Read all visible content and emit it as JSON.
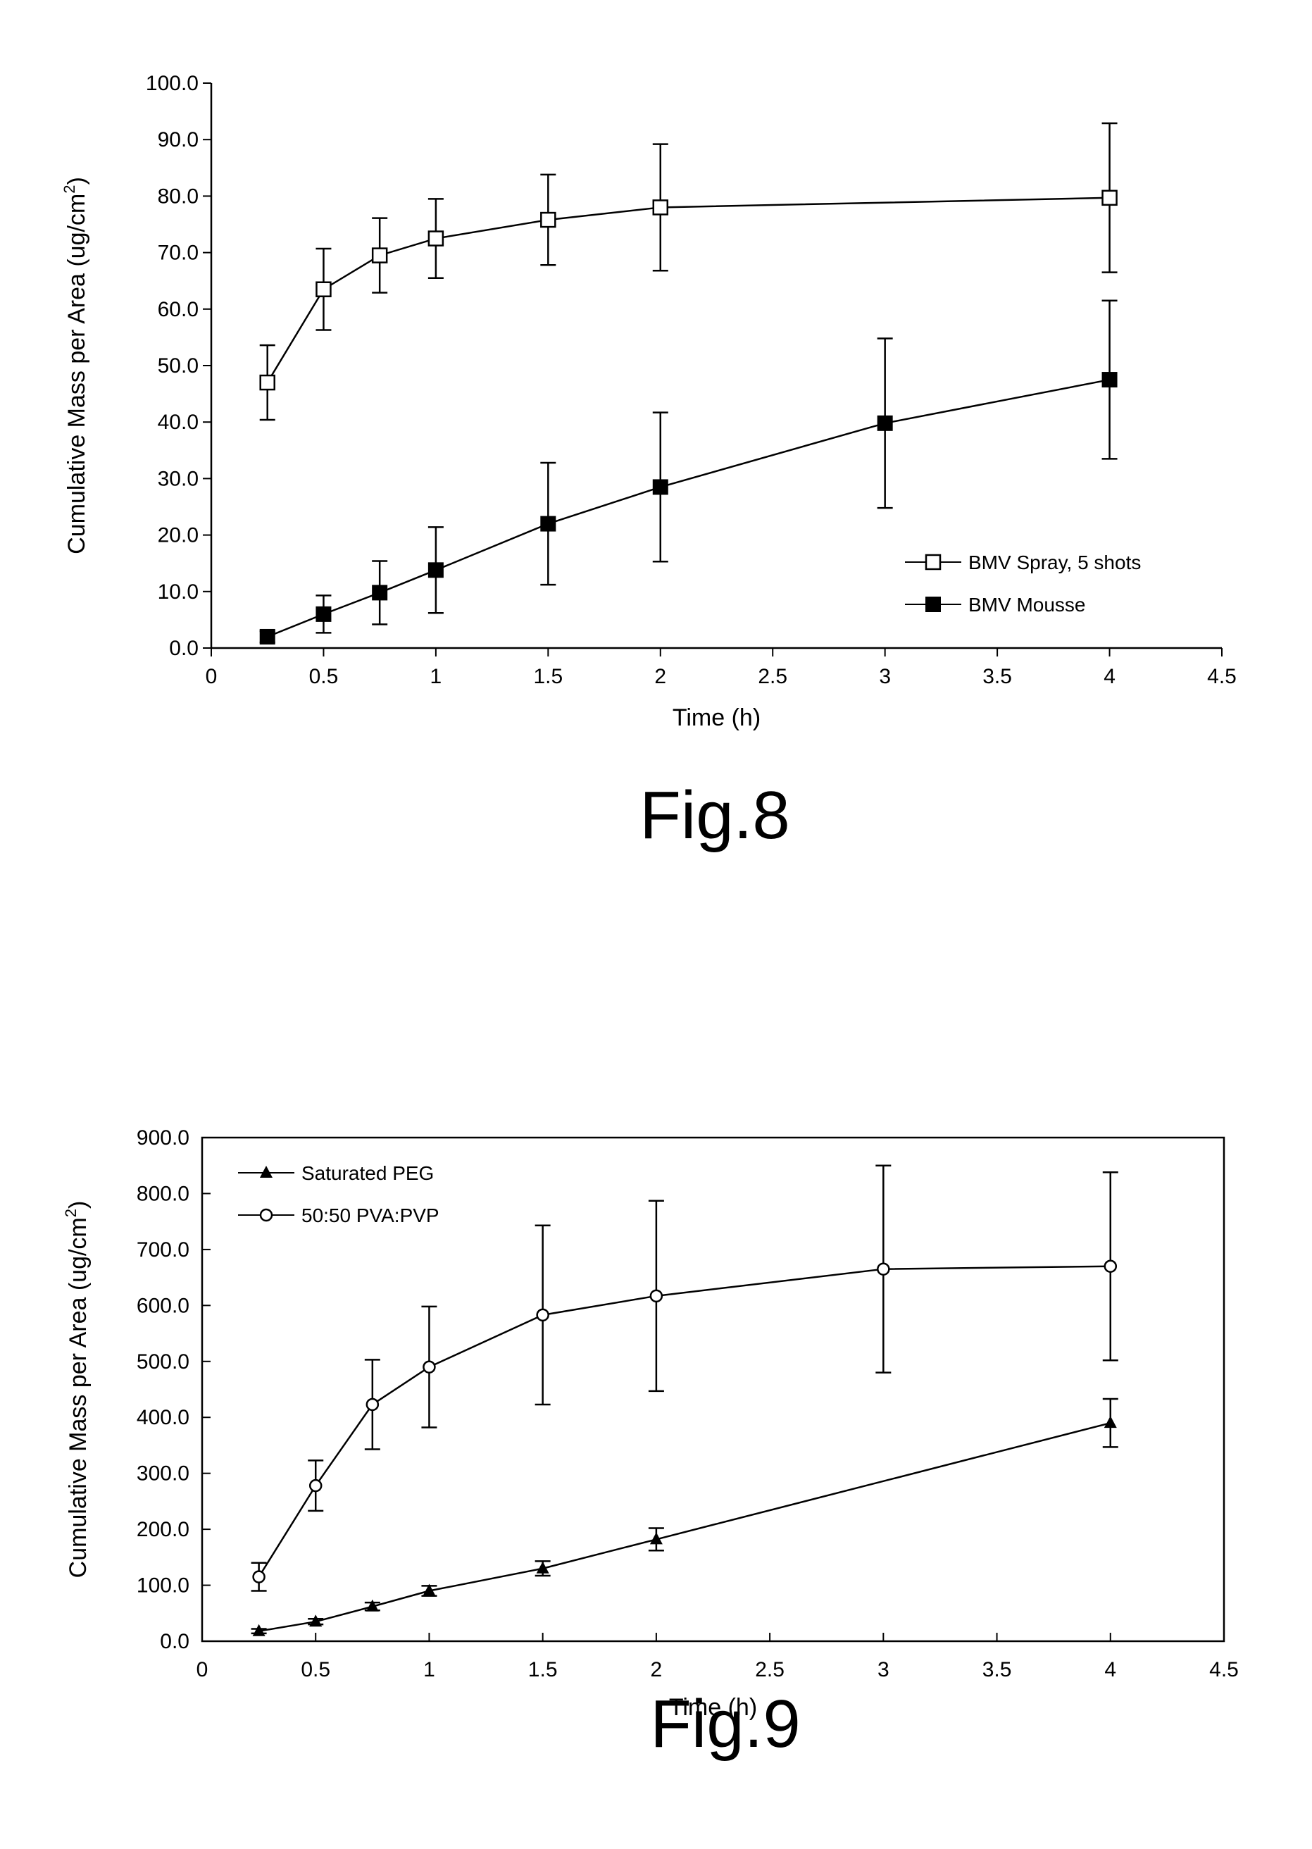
{
  "figures": [
    {
      "caption": "Fig.8"
    },
    {
      "caption": "Fig.9"
    }
  ],
  "chart_data": [
    {
      "type": "line",
      "title": "",
      "xlabel": "Time (h)",
      "ylabel": "Cumulative Mass per Area (ug/cm",
      "ylabel_superscript": "2",
      "ylabel_close": ")",
      "xlim": [
        0,
        4.5
      ],
      "ylim": [
        0,
        100
      ],
      "xticks": [
        0,
        0.5,
        1,
        1.5,
        2,
        2.5,
        3,
        3.5,
        4,
        4.5
      ],
      "xtick_labels": [
        "0",
        "0.5",
        "1",
        "1.5",
        "2",
        "2.5",
        "3",
        "3.5",
        "4",
        "4.5"
      ],
      "yticks": [
        0,
        10,
        20,
        30,
        40,
        50,
        60,
        70,
        80,
        90,
        100
      ],
      "ytick_labels": [
        "0.0",
        "10.0",
        "20.0",
        "30.0",
        "40.0",
        "50.0",
        "60.0",
        "70.0",
        "80.0",
        "90.0",
        "100.0"
      ],
      "grid": false,
      "frame": false,
      "legend_position": "bottom-right",
      "series": [
        {
          "name": "BMV Spray, 5 shots",
          "marker": "open-square",
          "x": [
            0.25,
            0.5,
            0.75,
            1,
            1.5,
            2,
            4
          ],
          "y": [
            47,
            63.5,
            69.5,
            72.5,
            75.8,
            78,
            79.7
          ],
          "err": [
            6.6,
            7.2,
            6.6,
            7,
            8,
            11.2,
            13.2
          ]
        },
        {
          "name": "BMV Mousse",
          "marker": "filled-square",
          "x": [
            0.25,
            0.5,
            0.75,
            1,
            1.5,
            2,
            3,
            4
          ],
          "y": [
            2,
            6,
            9.8,
            13.8,
            22,
            28.5,
            39.8,
            47.5
          ],
          "err": [
            1,
            3.3,
            5.6,
            7.6,
            10.8,
            13.2,
            15,
            14
          ]
        }
      ]
    },
    {
      "type": "line",
      "title": "",
      "xlabel": "Time (h)",
      "ylabel": "Cumulative Mass per Area (ug/cm",
      "ylabel_superscript": "2",
      "ylabel_close": ")",
      "xlim": [
        0,
        4.5
      ],
      "ylim": [
        0,
        900
      ],
      "xticks": [
        0,
        0.5,
        1,
        1.5,
        2,
        2.5,
        3,
        3.5,
        4,
        4.5
      ],
      "xtick_labels": [
        "0",
        "0.5",
        "1",
        "1.5",
        "2",
        "2.5",
        "3",
        "3.5",
        "4",
        "4.5"
      ],
      "yticks": [
        0,
        100,
        200,
        300,
        400,
        500,
        600,
        700,
        800,
        900
      ],
      "ytick_labels": [
        "0.0",
        "100.0",
        "200.0",
        "300.0",
        "400.0",
        "500.0",
        "600.0",
        "700.0",
        "800.0",
        "900.0"
      ],
      "grid": false,
      "frame": true,
      "legend_position": "top-left",
      "series": [
        {
          "name": "Saturated PEG",
          "marker": "filled-triangle",
          "x": [
            0.25,
            0.5,
            0.75,
            1,
            1.5,
            2,
            4
          ],
          "y": [
            18,
            35,
            62,
            90,
            130,
            182,
            390
          ],
          "err": [
            4,
            5,
            7,
            9,
            13,
            20,
            43
          ]
        },
        {
          "name": "50:50 PVA:PVP",
          "marker": "open-circle",
          "x": [
            0.25,
            0.5,
            0.75,
            1,
            1.5,
            2,
            3,
            4
          ],
          "y": [
            115,
            278,
            423,
            490,
            583,
            617,
            665,
            670
          ],
          "err": [
            25,
            45,
            80,
            108,
            160,
            170,
            185,
            168
          ]
        }
      ]
    }
  ]
}
